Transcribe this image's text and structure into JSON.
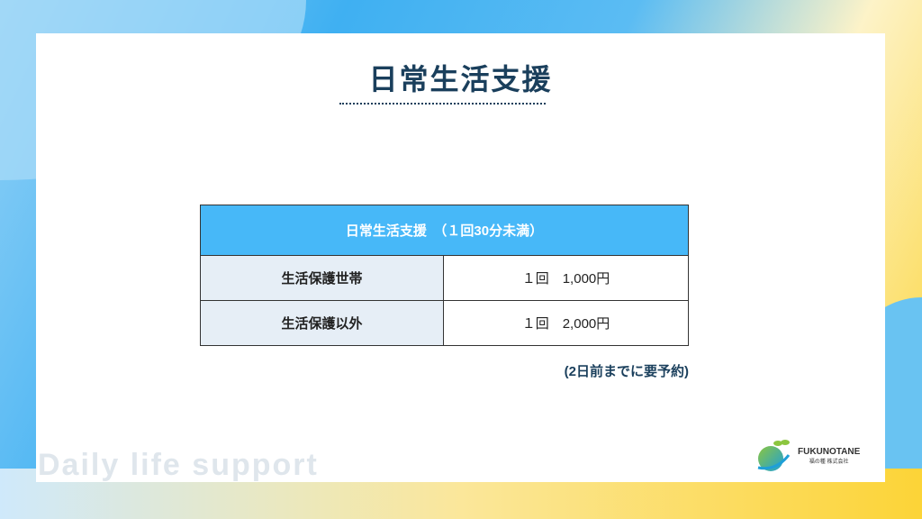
{
  "title": "日常生活支援",
  "table": {
    "header": "日常生活支援　（１回30分未満）",
    "rows": [
      {
        "label": "生活保護世帯",
        "value": "１回　1,000円"
      },
      {
        "label": "生活保護以外",
        "value": "１回　2,000円"
      }
    ]
  },
  "note": "(2日前までに要予約)",
  "watermark": "Daily life support",
  "logo": {
    "brand": "FUKUNOTANE",
    "sub": "福の種 株式会社"
  },
  "colors": {
    "header": "#47b8f8",
    "title": "#1a3f5c",
    "label_bg": "#e6eef6"
  }
}
